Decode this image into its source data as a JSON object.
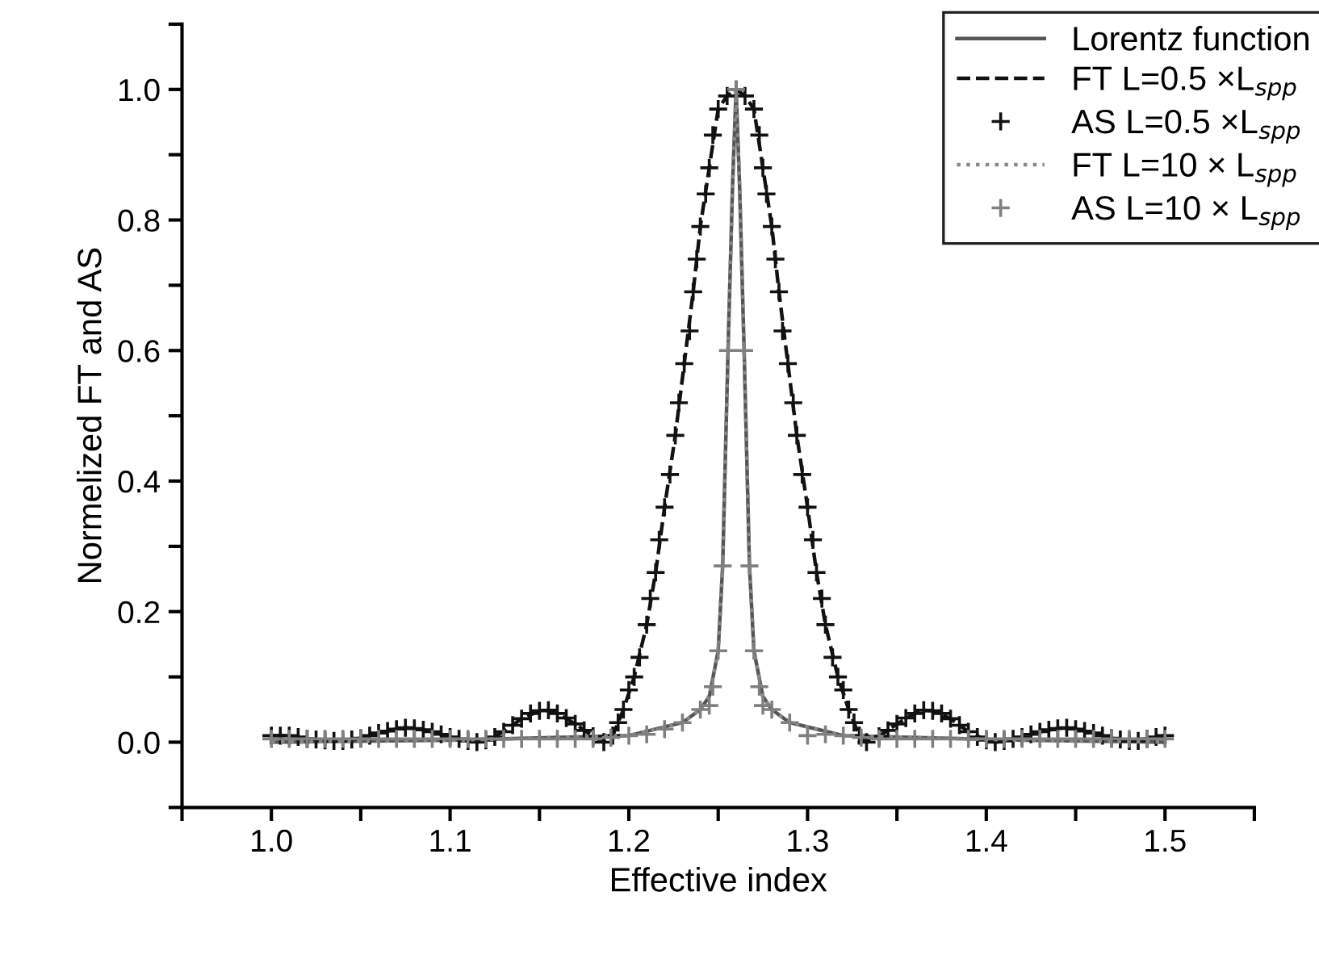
{
  "chart_data": {
    "type": "line",
    "xlabel": "Effective index",
    "ylabel": "Normelized FT and AS",
    "xlim": [
      0.95,
      1.55
    ],
    "ylim": [
      -0.1,
      1.1
    ],
    "xticks": [
      {
        "value": 0.95,
        "label": null
      },
      {
        "value": 1.0,
        "label": "1.0"
      },
      {
        "value": 1.05,
        "label": null
      },
      1.1,
      {
        "value": 1.15,
        "label": null
      },
      1.2,
      {
        "value": 1.25,
        "label": null
      },
      1.3,
      {
        "value": 1.35,
        "label": null
      },
      1.4,
      {
        "value": 1.45,
        "label": null
      },
      1.5,
      {
        "value": 1.55,
        "label": null
      }
    ],
    "yticks": [
      {
        "value": -0.1,
        "label": null
      },
      {
        "value": 0.0,
        "label": "0.0"
      },
      {
        "value": 0.1,
        "label": null
      },
      0.2,
      {
        "value": 0.3,
        "label": null
      },
      0.4,
      {
        "value": 0.5,
        "label": null
      },
      0.6,
      {
        "value": 0.7,
        "label": null
      },
      0.8,
      {
        "value": 0.9,
        "label": null
      },
      {
        "value": 1.0,
        "label": "1.0"
      },
      {
        "value": 1.1,
        "label": null
      }
    ],
    "grid": false,
    "legend": "top right",
    "series": [
      {
        "name": "Lorentz function",
        "color": "#555555",
        "marker": "none",
        "line_style": "solid",
        "x": [
          1.0,
          1.1,
          1.2,
          1.23,
          1.24,
          1.245,
          1.25,
          1.2525,
          1.2555,
          1.258,
          1.26,
          1.262,
          1.2645,
          1.2675,
          1.27,
          1.275,
          1.28,
          1.29,
          1.32,
          1.42,
          1.5
        ],
        "values": [
          0.0,
          0.003,
          0.01,
          0.03,
          0.05,
          0.07,
          0.14,
          0.27,
          0.6,
          0.85,
          1.0,
          0.85,
          0.6,
          0.27,
          0.14,
          0.07,
          0.05,
          0.03,
          0.01,
          0.003,
          0.0
        ]
      },
      {
        "name": "FT L=0.5 ×L$_{spp}$",
        "color": "#111111",
        "marker": "none",
        "line_style": "dashed",
        "x": [
          1.0,
          1.01,
          1.02,
          1.03,
          1.04,
          1.05,
          1.06,
          1.07,
          1.075,
          1.08,
          1.09,
          1.1,
          1.11,
          1.115,
          1.12,
          1.13,
          1.14,
          1.15,
          1.155,
          1.16,
          1.17,
          1.18,
          1.186,
          1.191,
          1.197,
          1.203,
          1.21,
          1.215,
          1.22,
          1.226,
          1.231,
          1.236,
          1.24,
          1.245,
          1.25,
          1.255,
          1.26,
          1.265,
          1.27,
          1.275,
          1.28,
          1.284,
          1.289,
          1.294,
          1.3,
          1.305,
          1.31,
          1.317,
          1.323,
          1.329,
          1.333,
          1.34,
          1.35,
          1.36,
          1.365,
          1.37,
          1.38,
          1.39,
          1.4,
          1.405,
          1.41,
          1.42,
          1.43,
          1.44,
          1.445,
          1.45,
          1.46,
          1.47,
          1.48,
          1.49,
          1.5
        ],
        "values": [
          0.01,
          0.01,
          0.005,
          0.003,
          0.002,
          0.006,
          0.014,
          0.02,
          0.022,
          0.021,
          0.016,
          0.008,
          0.002,
          0.0,
          0.003,
          0.016,
          0.036,
          0.048,
          0.049,
          0.044,
          0.028,
          0.009,
          0.0,
          0.01,
          0.05,
          0.1,
          0.18,
          0.26,
          0.36,
          0.47,
          0.58,
          0.69,
          0.79,
          0.88,
          0.97,
          0.99,
          1.0,
          0.99,
          0.97,
          0.88,
          0.79,
          0.69,
          0.58,
          0.47,
          0.36,
          0.26,
          0.18,
          0.1,
          0.05,
          0.01,
          0.0,
          0.009,
          0.028,
          0.044,
          0.049,
          0.048,
          0.036,
          0.016,
          0.003,
          0.0,
          0.002,
          0.008,
          0.016,
          0.021,
          0.022,
          0.02,
          0.014,
          0.006,
          0.002,
          0.005,
          0.01
        ]
      },
      {
        "name": "AS L=0.5 ×L$_{spp}$",
        "type": "scatter",
        "color": "#111111",
        "marker": "cross",
        "x": [
          1.0,
          1.005,
          1.01,
          1.015,
          1.02,
          1.025,
          1.03,
          1.035,
          1.04,
          1.045,
          1.05,
          1.055,
          1.06,
          1.065,
          1.07,
          1.075,
          1.08,
          1.085,
          1.09,
          1.095,
          1.1,
          1.105,
          1.11,
          1.115,
          1.12,
          1.125,
          1.13,
          1.135,
          1.14,
          1.145,
          1.15,
          1.155,
          1.16,
          1.165,
          1.17,
          1.175,
          1.18,
          1.186,
          1.191,
          1.194,
          1.197,
          1.2,
          1.203,
          1.206,
          1.21,
          1.212,
          1.215,
          1.217,
          1.22,
          1.223,
          1.226,
          1.228,
          1.231,
          1.234,
          1.236,
          1.238,
          1.24,
          1.243,
          1.245,
          1.247,
          1.25,
          1.255,
          1.26,
          1.265,
          1.27,
          1.273,
          1.275,
          1.277,
          1.28,
          1.282,
          1.284,
          1.286,
          1.289,
          1.292,
          1.294,
          1.297,
          1.3,
          1.303,
          1.305,
          1.308,
          1.31,
          1.314,
          1.317,
          1.32,
          1.323,
          1.326,
          1.329,
          1.333,
          1.34,
          1.345,
          1.35,
          1.355,
          1.36,
          1.365,
          1.37,
          1.375,
          1.38,
          1.385,
          1.39,
          1.395,
          1.4,
          1.405,
          1.41,
          1.415,
          1.42,
          1.425,
          1.43,
          1.435,
          1.44,
          1.445,
          1.45,
          1.455,
          1.46,
          1.465,
          1.47,
          1.475,
          1.48,
          1.485,
          1.49,
          1.495,
          1.5
        ],
        "values": [
          0.01,
          0.01,
          0.01,
          0.008,
          0.005,
          0.004,
          0.003,
          0.002,
          0.002,
          0.004,
          0.006,
          0.01,
          0.014,
          0.017,
          0.02,
          0.022,
          0.021,
          0.019,
          0.016,
          0.012,
          0.008,
          0.005,
          0.002,
          0.0,
          0.003,
          0.008,
          0.016,
          0.026,
          0.036,
          0.044,
          0.048,
          0.049,
          0.044,
          0.037,
          0.028,
          0.018,
          0.009,
          0.0,
          0.01,
          0.03,
          0.05,
          0.08,
          0.1,
          0.13,
          0.18,
          0.22,
          0.26,
          0.31,
          0.36,
          0.41,
          0.47,
          0.52,
          0.58,
          0.63,
          0.69,
          0.74,
          0.79,
          0.84,
          0.88,
          0.93,
          0.97,
          0.99,
          1.0,
          0.99,
          0.97,
          0.93,
          0.88,
          0.84,
          0.79,
          0.74,
          0.69,
          0.63,
          0.58,
          0.52,
          0.47,
          0.41,
          0.36,
          0.31,
          0.26,
          0.22,
          0.18,
          0.13,
          0.1,
          0.08,
          0.05,
          0.03,
          0.01,
          0.0,
          0.009,
          0.018,
          0.028,
          0.037,
          0.044,
          0.049,
          0.048,
          0.044,
          0.036,
          0.026,
          0.016,
          0.008,
          0.003,
          0.0,
          0.002,
          0.005,
          0.008,
          0.012,
          0.016,
          0.019,
          0.021,
          0.022,
          0.02,
          0.017,
          0.014,
          0.01,
          0.006,
          0.004,
          0.002,
          0.002,
          0.005,
          0.008,
          0.01
        ]
      },
      {
        "name": "FT L=10 × L$_{spp}$",
        "color": "#888888",
        "marker": "none",
        "line_style": "dotted",
        "x": [
          1.0,
          1.1,
          1.2,
          1.23,
          1.24,
          1.245,
          1.25,
          1.2525,
          1.2555,
          1.258,
          1.26,
          1.262,
          1.2645,
          1.2675,
          1.27,
          1.275,
          1.28,
          1.29,
          1.32,
          1.42,
          1.5
        ],
        "values": [
          0.0,
          0.003,
          0.01,
          0.03,
          0.05,
          0.07,
          0.14,
          0.27,
          0.6,
          0.85,
          1.0,
          0.85,
          0.6,
          0.27,
          0.14,
          0.07,
          0.05,
          0.03,
          0.01,
          0.003,
          0.0
        ]
      },
      {
        "name": "AS L=10 × L$_{spp}$",
        "type": "scatter",
        "color": "#808080",
        "marker": "cross",
        "x": [
          1.0,
          1.01,
          1.02,
          1.03,
          1.04,
          1.05,
          1.06,
          1.07,
          1.08,
          1.09,
          1.1,
          1.11,
          1.12,
          1.13,
          1.14,
          1.15,
          1.16,
          1.17,
          1.18,
          1.19,
          1.2,
          1.21,
          1.22,
          1.23,
          1.24,
          1.245,
          1.247,
          1.25,
          1.2525,
          1.2555,
          1.26,
          1.2645,
          1.2675,
          1.27,
          1.273,
          1.275,
          1.28,
          1.29,
          1.3,
          1.31,
          1.32,
          1.33,
          1.34,
          1.35,
          1.36,
          1.37,
          1.38,
          1.39,
          1.4,
          1.41,
          1.42,
          1.43,
          1.44,
          1.45,
          1.46,
          1.47,
          1.48,
          1.49,
          1.5
        ],
        "values": [
          0.005,
          0.005,
          0.005,
          0.005,
          0.005,
          0.005,
          0.005,
          0.005,
          0.005,
          0.005,
          0.005,
          0.005,
          0.005,
          0.005,
          0.005,
          0.005,
          0.005,
          0.005,
          0.005,
          0.007,
          0.01,
          0.012,
          0.02,
          0.03,
          0.05,
          0.056,
          0.085,
          0.14,
          0.27,
          0.6,
          1.0,
          0.6,
          0.27,
          0.14,
          0.085,
          0.056,
          0.05,
          0.03,
          0.01,
          0.012,
          0.01,
          0.007,
          0.005,
          0.005,
          0.005,
          0.005,
          0.005,
          0.005,
          0.005,
          0.005,
          0.005,
          0.005,
          0.005,
          0.005,
          0.005,
          0.005,
          0.005,
          0.005,
          0.005
        ]
      }
    ]
  }
}
